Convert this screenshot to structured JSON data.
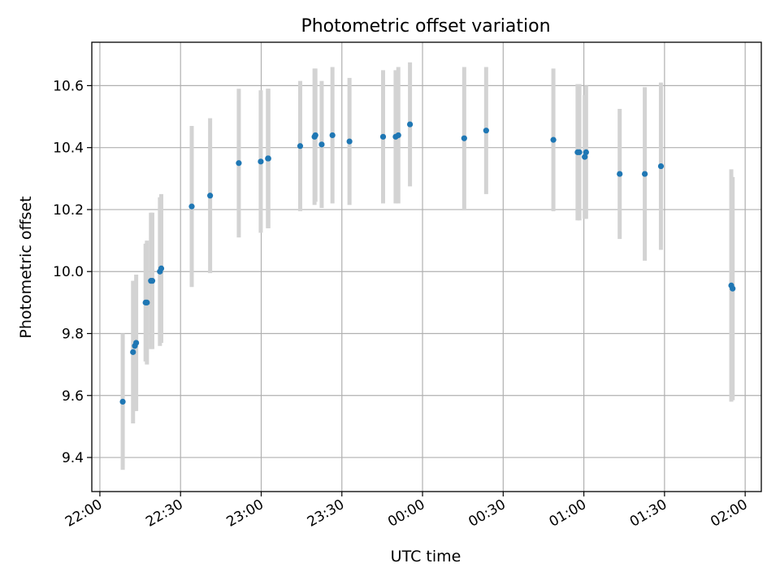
{
  "chart_data": {
    "type": "scatter",
    "title": "Photometric offset variation",
    "xlabel": "UTC time",
    "ylabel": "Photometric offset",
    "x_ticks": [
      "22:00",
      "22:30",
      "23:00",
      "23:30",
      "00:00",
      "00:30",
      "01:00",
      "01:30",
      "02:00"
    ],
    "y_ticks": [
      "9.4",
      "9.6",
      "9.8",
      "10.0",
      "10.2",
      "10.4",
      "10.6"
    ],
    "xlim": [
      "21:57",
      "02:06"
    ],
    "ylim": [
      9.29,
      10.74
    ],
    "grid": true,
    "colors": {
      "point": "#1f77b4",
      "errorbar": "#d3d3d3"
    },
    "series": [
      {
        "points": [
          {
            "t": "22:08:30",
            "y": 9.58,
            "err": 0.22
          },
          {
            "t": "22:12:20",
            "y": 9.74,
            "err": 0.23
          },
          {
            "t": "22:13:00",
            "y": 9.76,
            "err": 0.21
          },
          {
            "t": "22:13:30",
            "y": 9.77,
            "err": 0.22
          },
          {
            "t": "22:17:00",
            "y": 9.9,
            "err": 0.19
          },
          {
            "t": "22:17:30",
            "y": 9.9,
            "err": 0.2
          },
          {
            "t": "22:19:00",
            "y": 9.97,
            "err": 0.22
          },
          {
            "t": "22:19:30",
            "y": 9.97,
            "err": 0.22
          },
          {
            "t": "22:22:20",
            "y": 10.0,
            "err": 0.24
          },
          {
            "t": "22:22:50",
            "y": 10.01,
            "err": 0.24
          },
          {
            "t": "22:34:10",
            "y": 10.21,
            "err": 0.26
          },
          {
            "t": "22:41:00",
            "y": 10.245,
            "err": 0.25
          },
          {
            "t": "22:51:40",
            "y": 10.35,
            "err": 0.24
          },
          {
            "t": "22:59:50",
            "y": 10.355,
            "err": 0.23
          },
          {
            "t": "23:02:30",
            "y": 10.365,
            "err": 0.225
          },
          {
            "t": "23:02:40",
            "y": 10.365,
            "err": 0.225
          },
          {
            "t": "23:14:30",
            "y": 10.405,
            "err": 0.21
          },
          {
            "t": "23:19:50",
            "y": 10.435,
            "err": 0.22
          },
          {
            "t": "23:20:10",
            "y": 10.44,
            "err": 0.215
          },
          {
            "t": "23:22:30",
            "y": 10.41,
            "err": 0.205
          },
          {
            "t": "23:26:30",
            "y": 10.44,
            "err": 0.22
          },
          {
            "t": "23:32:50",
            "y": 10.42,
            "err": 0.205
          },
          {
            "t": "23:45:20",
            "y": 10.435,
            "err": 0.215
          },
          {
            "t": "23:50:00",
            "y": 10.435,
            "err": 0.215
          },
          {
            "t": "23:51:00",
            "y": 10.44,
            "err": 0.22
          },
          {
            "t": "23:55:20",
            "y": 10.475,
            "err": 0.2
          },
          {
            "t": "00:15:30",
            "y": 10.43,
            "err": 0.23
          },
          {
            "t": "00:23:40",
            "y": 10.455,
            "err": 0.205
          },
          {
            "t": "00:48:40",
            "y": 10.425,
            "err": 0.23
          },
          {
            "t": "00:57:40",
            "y": 10.385,
            "err": 0.22
          },
          {
            "t": "00:58:20",
            "y": 10.385,
            "err": 0.22
          },
          {
            "t": "01:00:20",
            "y": 10.37,
            "err": 0.2
          },
          {
            "t": "01:00:50",
            "y": 10.385,
            "err": 0.215
          },
          {
            "t": "01:13:20",
            "y": 10.315,
            "err": 0.21
          },
          {
            "t": "01:22:40",
            "y": 10.315,
            "err": 0.28
          },
          {
            "t": "01:28:40",
            "y": 10.34,
            "err": 0.27
          },
          {
            "t": "01:54:50",
            "y": 9.955,
            "err": 0.375
          },
          {
            "t": "01:55:20",
            "y": 9.945,
            "err": 0.36
          }
        ]
      }
    ]
  }
}
